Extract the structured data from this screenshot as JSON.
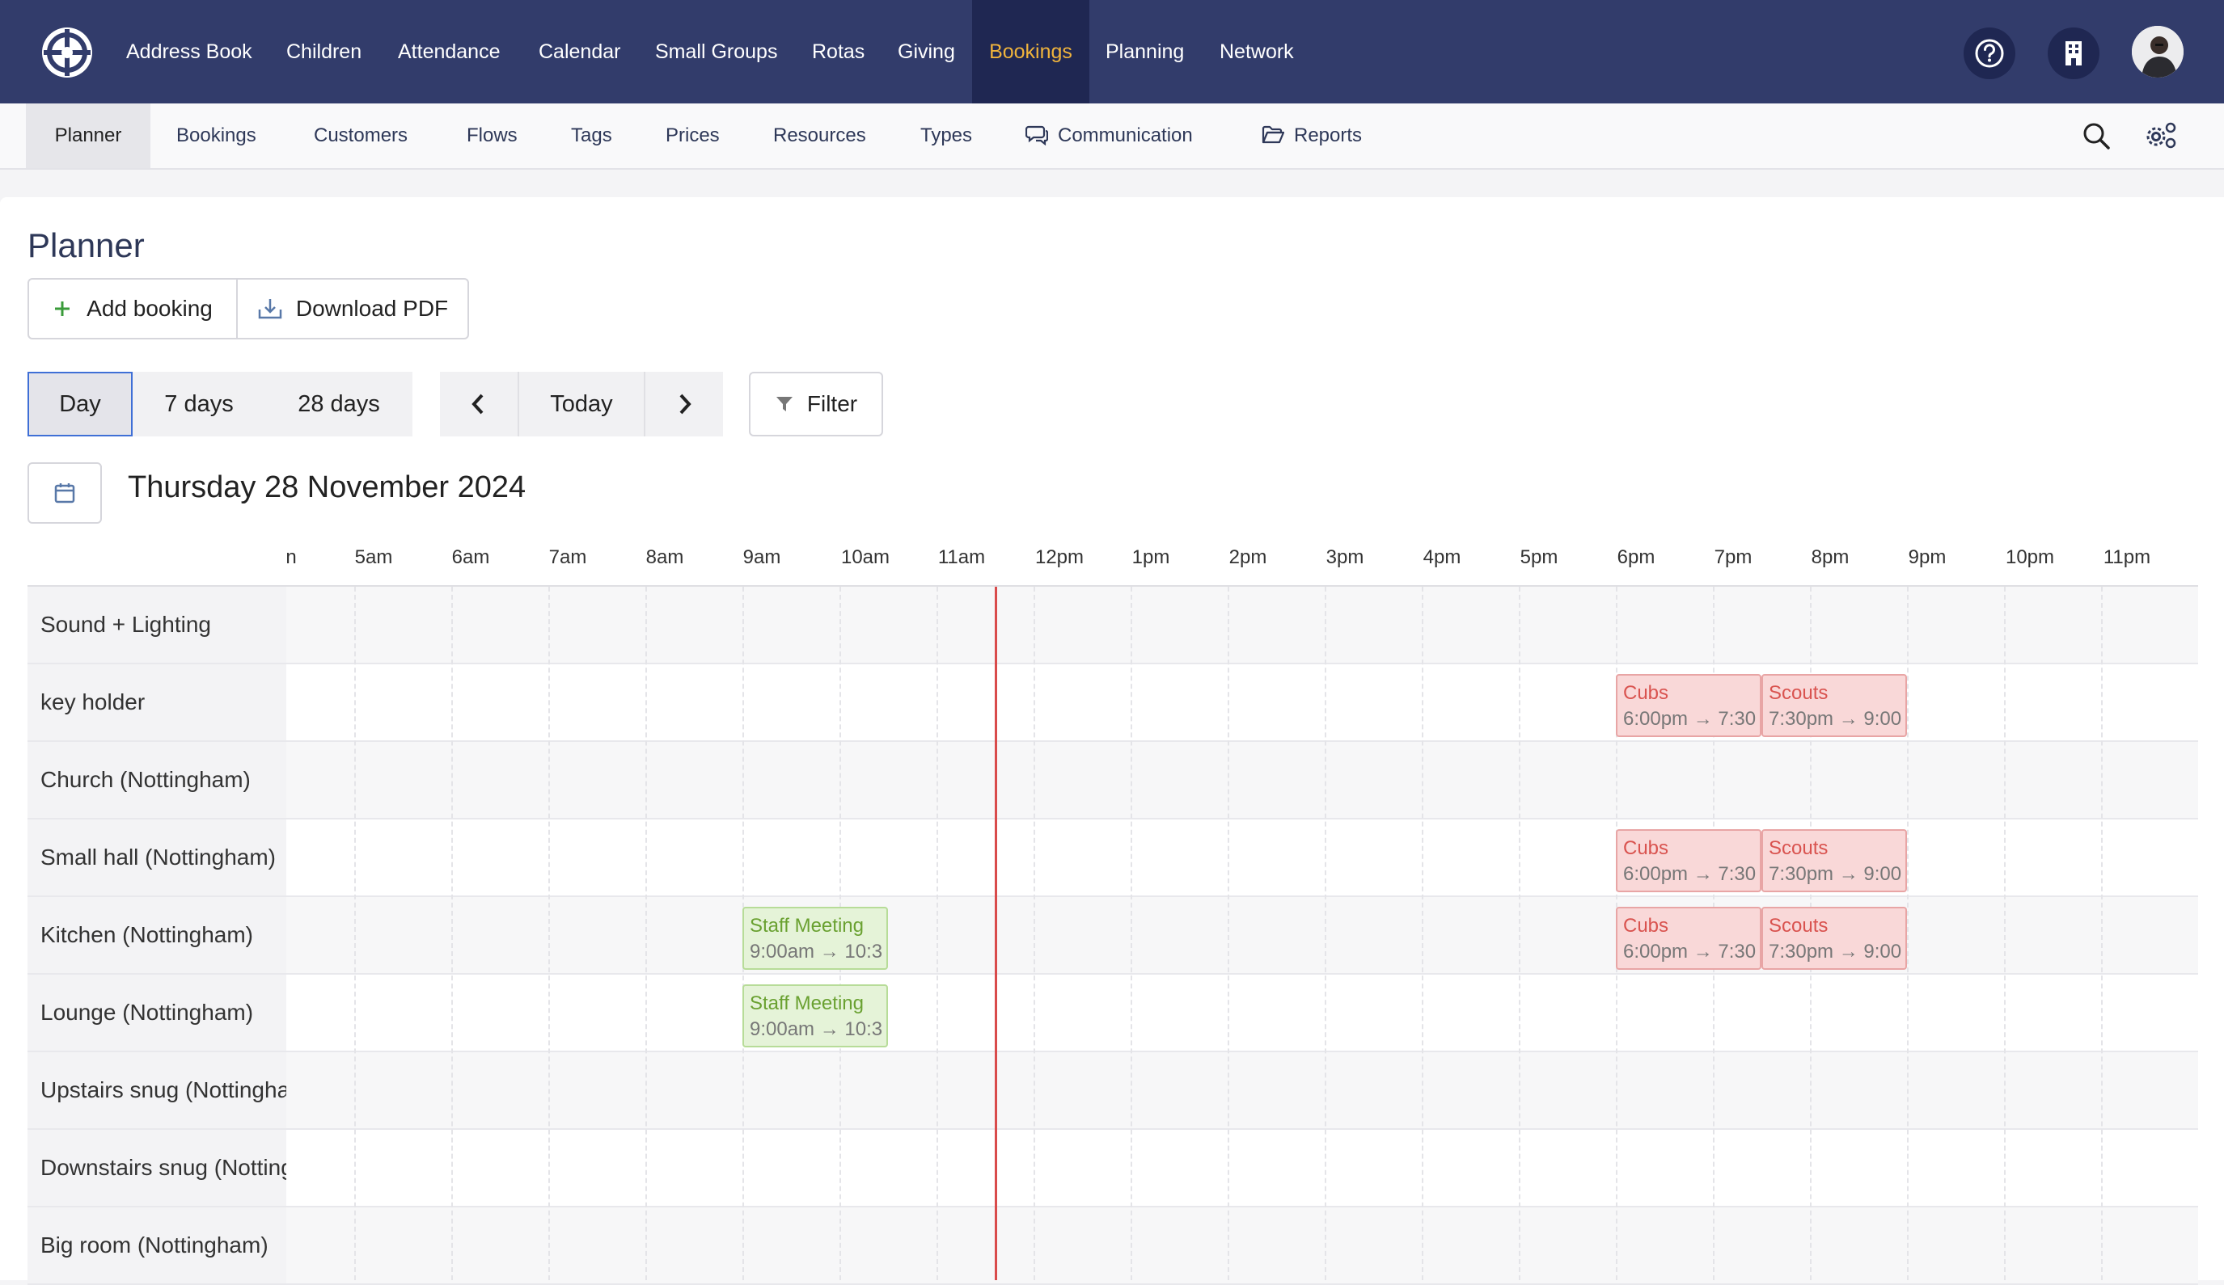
{
  "nav": {
    "items": [
      "Address Book",
      "Children",
      "Attendance",
      "Calendar",
      "Small Groups",
      "Rotas",
      "Giving",
      "Bookings",
      "Planning",
      "Network"
    ],
    "active": "Bookings",
    "accent_color": "#f0b43c",
    "bg_color": "#323c6b"
  },
  "subnav": {
    "items": [
      "Planner",
      "Bookings",
      "Customers",
      "Flows",
      "Tags",
      "Prices",
      "Resources",
      "Types",
      "Communication",
      "Reports"
    ],
    "active": "Planner"
  },
  "page": {
    "title": "Planner",
    "add_booking": "Add booking",
    "download_pdf": "Download PDF",
    "views": [
      "Day",
      "7 days",
      "28 days"
    ],
    "active_view": "Day",
    "prev": "‹",
    "today": "Today",
    "next": "›",
    "filter": "Filter",
    "date": "Thursday 28 November 2024"
  },
  "planner": {
    "hours": [
      "n",
      "5am",
      "6am",
      "7am",
      "8am",
      "9am",
      "10am",
      "11am",
      "12pm",
      "1pm",
      "2pm",
      "3pm",
      "4pm",
      "5pm",
      "6pm",
      "7pm",
      "8pm",
      "9pm",
      "10pm",
      "11pm"
    ],
    "resources": [
      "Sound + Lighting",
      "key holder",
      "Church (Nottingham)",
      "Small hall (Nottingham)",
      "Kitchen (Nottingham)",
      "Lounge (Nottingham)",
      "Upstairs snug (Nottingham)",
      "Downstairs snug (Nottingham)",
      "Big room (Nottingham)"
    ],
    "bookings": [
      {
        "row": 1,
        "name": "Cubs",
        "time": "6:00pm → 7:30",
        "color": "red"
      },
      {
        "row": 1,
        "name": "Scouts",
        "time": "7:30pm → 9:00",
        "color": "red"
      },
      {
        "row": 3,
        "name": "Cubs",
        "time": "6:00pm → 7:30",
        "color": "red"
      },
      {
        "row": 3,
        "name": "Scouts",
        "time": "7:30pm → 9:00",
        "color": "red"
      },
      {
        "row": 4,
        "name": "Staff Meeting",
        "time": "9:00am → 10:3",
        "color": "green"
      },
      {
        "row": 4,
        "name": "Cubs",
        "time": "6:00pm → 7:30",
        "color": "red"
      },
      {
        "row": 4,
        "name": "Scouts",
        "time": "7:30pm → 9:00",
        "color": "red"
      },
      {
        "row": 5,
        "name": "Staff Meeting",
        "time": "9:00am → 10:3",
        "color": "green"
      }
    ]
  }
}
